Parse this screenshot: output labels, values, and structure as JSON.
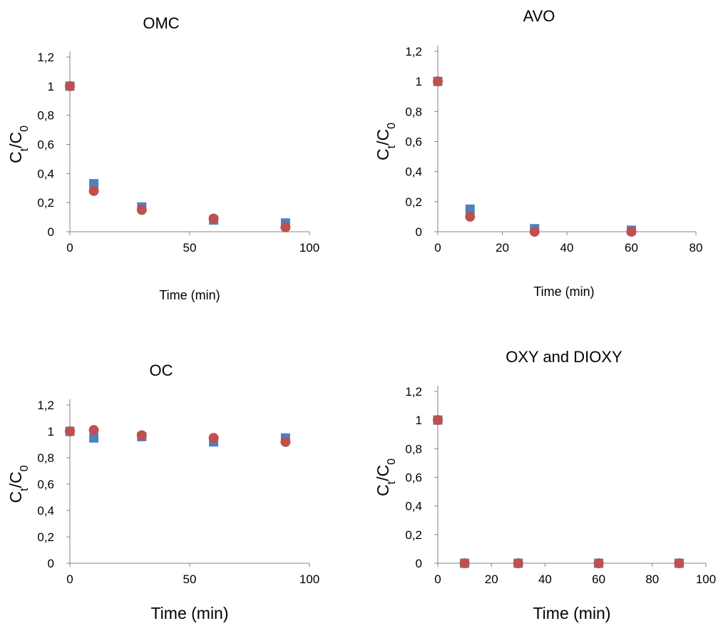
{
  "colors": {
    "series_square": "#4F81BD",
    "series_circle": "#C0504D",
    "axis": "#868686"
  },
  "chart_data": [
    {
      "type": "scatter",
      "title": "OMC",
      "xlabel": "Time (min)",
      "ylabel": {
        "main": "C",
        "sub1": "t",
        "mid": "/C",
        "sub2": "0"
      },
      "xlim": [
        0,
        100
      ],
      "ylim": [
        0,
        1.2
      ],
      "xticks": [
        0,
        50,
        100
      ],
      "xtick_labels": [
        "0",
        "50",
        "100"
      ],
      "yticks": [
        0,
        0.2,
        0.4,
        0.6,
        0.8,
        1,
        1.2
      ],
      "ytick_labels": [
        "0",
        "0,2",
        "0,4",
        "0,6",
        "0,8",
        "1",
        "1,2"
      ],
      "grid": false,
      "series": [
        {
          "marker": "square",
          "x": [
            0,
            10,
            30,
            60,
            90
          ],
          "y": [
            1,
            0.33,
            0.17,
            0.08,
            0.06
          ]
        },
        {
          "marker": "circle",
          "x": [
            0,
            10,
            30,
            60,
            90
          ],
          "y": [
            1,
            0.28,
            0.15,
            0.09,
            0.03
          ]
        }
      ]
    },
    {
      "type": "scatter",
      "title": "AVO",
      "xlabel": "Time (min)",
      "ylabel": {
        "main": "C",
        "sub1": "t",
        "mid": "/C",
        "sub2": "0"
      },
      "xlim": [
        0,
        80
      ],
      "ylim": [
        0,
        1.2
      ],
      "xticks": [
        0,
        20,
        40,
        60,
        80
      ],
      "xtick_labels": [
        "0",
        "20",
        "40",
        "60",
        "80"
      ],
      "yticks": [
        0,
        0.2,
        0.4,
        0.6,
        0.8,
        1,
        1.2
      ],
      "ytick_labels": [
        "0",
        "0,2",
        "0,4",
        "0,6",
        "0,8",
        "1",
        "1,2"
      ],
      "grid": false,
      "series": [
        {
          "marker": "square",
          "x": [
            0,
            10,
            30,
            60
          ],
          "y": [
            1,
            0.15,
            0.02,
            0.01
          ]
        },
        {
          "marker": "circle",
          "x": [
            0,
            10,
            30,
            60
          ],
          "y": [
            1,
            0.1,
            0.0,
            0.0
          ]
        }
      ]
    },
    {
      "type": "scatter",
      "title": "OC",
      "xlabel": "Time (min)",
      "ylabel": {
        "main": "C",
        "sub1": "t",
        "mid": "/C",
        "sub2": "0"
      },
      "xlim": [
        0,
        100
      ],
      "ylim": [
        0,
        1.2
      ],
      "xticks": [
        0,
        50,
        100
      ],
      "xtick_labels": [
        "0",
        "50",
        "100"
      ],
      "yticks": [
        0,
        0.2,
        0.4,
        0.6,
        0.8,
        1,
        1.2
      ],
      "ytick_labels": [
        "0",
        "0,2",
        "0,4",
        "0,6",
        "0,8",
        "1",
        "1,2"
      ],
      "grid": false,
      "series": [
        {
          "marker": "square",
          "x": [
            0,
            10,
            30,
            60,
            90
          ],
          "y": [
            1,
            0.95,
            0.96,
            0.92,
            0.95
          ]
        },
        {
          "marker": "circle",
          "x": [
            0,
            10,
            30,
            60,
            90
          ],
          "y": [
            1,
            1.01,
            0.97,
            0.95,
            0.92
          ]
        }
      ]
    },
    {
      "type": "scatter",
      "title": "OXY and DIOXY",
      "xlabel": "Time (min)",
      "ylabel": {
        "main": "C",
        "sub1": "t",
        "mid": "/C",
        "sub2": "0"
      },
      "xlim": [
        0,
        100
      ],
      "ylim": [
        0,
        1.2
      ],
      "xticks": [
        0,
        20,
        40,
        60,
        80,
        100
      ],
      "xtick_labels": [
        "0",
        "20",
        "40",
        "60",
        "80",
        "100"
      ],
      "yticks": [
        0,
        0.2,
        0.4,
        0.6,
        0.8,
        1,
        1.2
      ],
      "ytick_labels": [
        "0",
        "0,2",
        "0,4",
        "0,6",
        "0,8",
        "1",
        "1,2"
      ],
      "grid": false,
      "series": [
        {
          "marker": "square",
          "x": [
            0,
            10,
            30,
            60,
            90
          ],
          "y": [
            1,
            0,
            0,
            0,
            0
          ]
        },
        {
          "marker": "circle",
          "x": [
            0,
            10,
            30,
            60,
            90
          ],
          "y": [
            1,
            0,
            0,
            0,
            0
          ]
        }
      ]
    }
  ]
}
